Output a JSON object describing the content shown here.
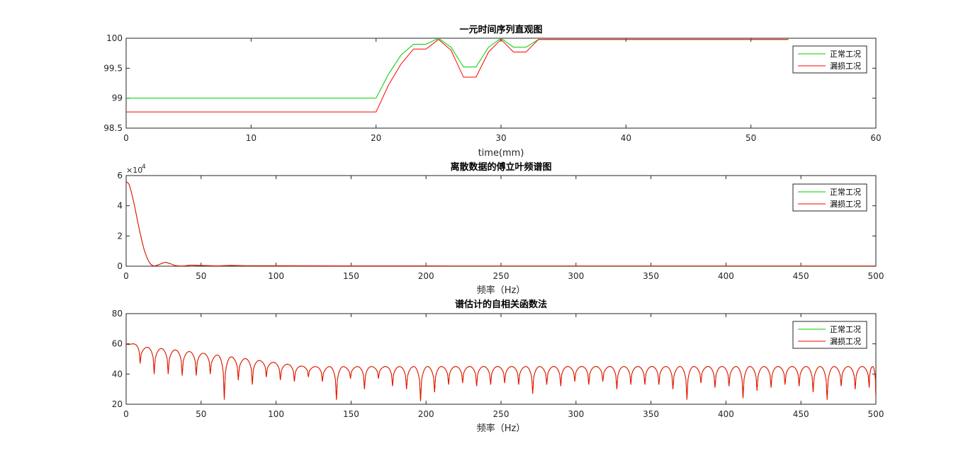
{
  "chart_data": [
    {
      "type": "line",
      "title": "一元时间序列直观图",
      "xlabel": "time(mm)",
      "ylabel": "",
      "xlim": [
        0,
        60
      ],
      "ylim": [
        98.5,
        100
      ],
      "xticks": [
        0,
        10,
        20,
        30,
        40,
        50,
        60
      ],
      "xtick_labels": [
        "0",
        "10",
        "20",
        "30",
        "40",
        "50",
        "60"
      ],
      "yticks": [
        98.5,
        99,
        99.5,
        100
      ],
      "ytick_labels": [
        "98.5",
        "99",
        "99.5",
        "100"
      ],
      "legend_position": "top-right",
      "series": [
        {
          "name": "正常工况",
          "color": "#00cc00",
          "x": [
            0,
            20,
            21,
            22,
            23,
            24,
            25,
            26,
            27,
            28,
            29,
            30,
            31,
            32,
            33,
            53
          ],
          "y": [
            99.0,
            99.0,
            99.4,
            99.72,
            99.9,
            99.9,
            100.0,
            99.85,
            99.52,
            99.52,
            99.85,
            100.0,
            99.85,
            99.85,
            99.98,
            99.98
          ]
        },
        {
          "name": "漏损工况",
          "color": "#ff0000",
          "x": [
            0,
            20,
            21,
            22,
            23,
            24,
            25,
            26,
            27,
            28,
            29,
            30,
            31,
            32,
            33,
            53
          ],
          "y": [
            98.77,
            98.77,
            99.22,
            99.57,
            99.82,
            99.82,
            99.98,
            99.8,
            99.35,
            99.35,
            99.77,
            99.98,
            99.77,
            99.77,
            99.98,
            99.98
          ]
        }
      ]
    },
    {
      "type": "line",
      "title": "离散数据的傅立叶频谱图",
      "xlabel": "频率（Hz）",
      "ylabel": "",
      "xlim": [
        0,
        500
      ],
      "ylim": [
        0,
        60000
      ],
      "xticks": [
        0,
        50,
        100,
        150,
        200,
        250,
        300,
        350,
        400,
        450,
        500
      ],
      "xtick_labels": [
        "0",
        "50",
        "100",
        "150",
        "200",
        "250",
        "300",
        "350",
        "400",
        "450",
        "500"
      ],
      "yticks": [
        0,
        20000,
        40000,
        60000
      ],
      "ytick_labels": [
        "0",
        "2",
        "4",
        "6"
      ],
      "y_exponent_base": "×10",
      "y_exponent_power": "4",
      "legend_position": "top-right",
      "series": [
        {
          "name": "正常工况",
          "color": "#00cc00",
          "x": [
            0,
            2,
            4,
            6,
            8,
            10,
            12,
            14,
            16,
            18,
            20,
            23,
            26,
            29,
            33,
            38,
            43,
            50,
            60,
            70,
            80,
            100,
            150,
            200,
            300,
            400,
            500
          ],
          "y": [
            56000,
            54000,
            47000,
            38000,
            28000,
            19000,
            11000,
            5500,
            1800,
            300,
            400,
            1500,
            2500,
            1800,
            400,
            150,
            700,
            500,
            250,
            500,
            300,
            300,
            200,
            150,
            120,
            100,
            100
          ]
        },
        {
          "name": "漏损工况",
          "color": "#ff0000",
          "x": [
            0,
            2,
            4,
            6,
            8,
            10,
            12,
            14,
            16,
            18,
            20,
            23,
            26,
            29,
            33,
            38,
            43,
            50,
            60,
            70,
            80,
            100,
            150,
            200,
            300,
            400,
            500
          ],
          "y": [
            56000,
            54000,
            47000,
            38000,
            28000,
            19000,
            11000,
            5500,
            1800,
            300,
            400,
            1500,
            2500,
            1800,
            400,
            150,
            700,
            500,
            250,
            500,
            300,
            300,
            200,
            150,
            120,
            100,
            100
          ]
        }
      ]
    },
    {
      "type": "line",
      "title": "谱估计的自相关函数法",
      "xlabel": "频率（Hz）",
      "ylabel": "",
      "xlim": [
        0,
        500
      ],
      "ylim": [
        20,
        80
      ],
      "xticks": [
        0,
        50,
        100,
        150,
        200,
        250,
        300,
        350,
        400,
        450,
        500
      ],
      "xtick_labels": [
        "0",
        "50",
        "100",
        "150",
        "200",
        "250",
        "300",
        "350",
        "400",
        "450",
        "500"
      ],
      "yticks": [
        20,
        40,
        60,
        80
      ],
      "ytick_labels": [
        "20",
        "40",
        "60",
        "80"
      ],
      "legend_position": "top-right",
      "lobe_period": 9.35,
      "peak_start": 60,
      "peak_end": 40,
      "dips": [
        47,
        40,
        40,
        39,
        39,
        40,
        23,
        36,
        33,
        38,
        36,
        35,
        38,
        35,
        23,
        37,
        30,
        37,
        32,
        30,
        22,
        28,
        33,
        34,
        32,
        33,
        34,
        33,
        27,
        33,
        32,
        35,
        33,
        35,
        30,
        33,
        33,
        33,
        30,
        23,
        34,
        31,
        32,
        24,
        29,
        31,
        33,
        32,
        28,
        23,
        32,
        30,
        31,
        24,
        33,
        29,
        32,
        32,
        26,
        32,
        28,
        30,
        33,
        29,
        30,
        33,
        27,
        30,
        24,
        29,
        26,
        30,
        31,
        28,
        24,
        30,
        32,
        26,
        29,
        29
      ],
      "series": [
        {
          "name": "正常工况",
          "color": "#00cc00"
        },
        {
          "name": "漏损工况",
          "color": "#ff0000"
        }
      ]
    }
  ]
}
